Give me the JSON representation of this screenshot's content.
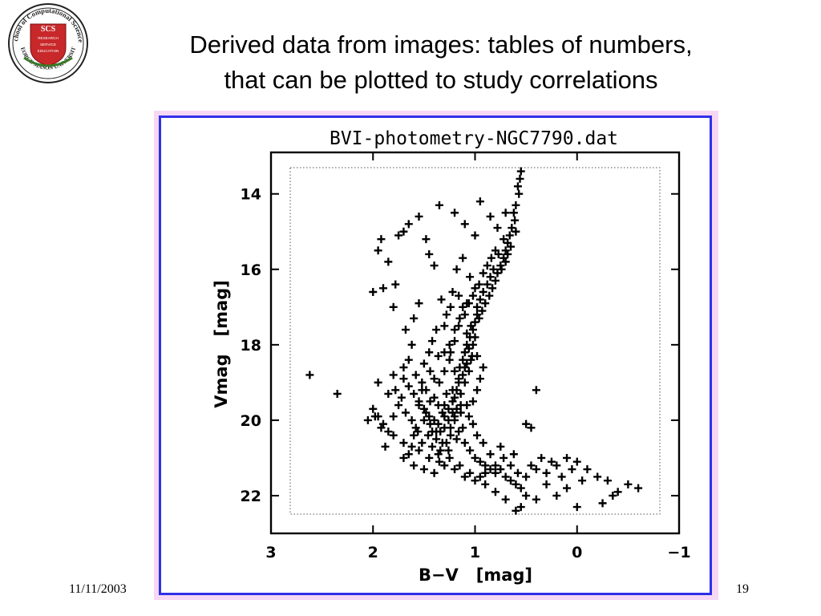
{
  "slide": {
    "title_line1": "Derived data from images: tables of numbers,",
    "title_line2": "that can be plotted to study correlations",
    "date": "11/11/2003",
    "page_number": "19"
  },
  "logo": {
    "ring_text": "School of Computational Sciences",
    "bottom_text": "GEORGE MASON UNIVERSITY",
    "initials": "SCS",
    "lines": [
      "RESEARCH",
      "SERVICE",
      "EDUCATION"
    ]
  },
  "colors": {
    "frame_border": "#2f2fe8",
    "frame_bg": "#f6d8f4",
    "logo_red": "#c8282a"
  },
  "chart_data": {
    "type": "scatter",
    "title": "BVI-photometry-NGC7790.dat",
    "xlabel": "B−V   [mag]",
    "ylabel": "Vmag   [mag]",
    "xlim": [
      3.0,
      -1.0
    ],
    "ylim": [
      23.0,
      12.9
    ],
    "xticks": [
      3,
      2,
      1,
      0,
      -1
    ],
    "xtick_labels": [
      "3",
      "2",
      "1",
      "0",
      "−1"
    ],
    "yticks": [
      14,
      16,
      18,
      20,
      22
    ],
    "ytick_labels": [
      "14",
      "16",
      "18",
      "20",
      "22"
    ],
    "grid": false,
    "marker": "+",
    "points": [
      [
        0.55,
        13.4
      ],
      [
        0.56,
        13.6
      ],
      [
        0.58,
        13.8
      ],
      [
        0.57,
        14.0
      ],
      [
        0.6,
        14.3
      ],
      [
        0.62,
        14.5
      ],
      [
        0.61,
        14.7
      ],
      [
        0.64,
        14.9
      ],
      [
        0.66,
        15.1
      ],
      [
        0.68,
        15.3
      ],
      [
        0.7,
        15.5
      ],
      [
        0.72,
        15.7
      ],
      [
        0.75,
        15.9
      ],
      [
        0.78,
        16.1
      ],
      [
        0.8,
        16.3
      ],
      [
        0.83,
        16.5
      ],
      [
        0.86,
        16.7
      ],
      [
        0.9,
        16.9
      ],
      [
        0.93,
        17.1
      ],
      [
        0.96,
        17.3
      ],
      [
        0.6,
        15.0
      ],
      [
        0.65,
        15.4
      ],
      [
        0.7,
        15.8
      ],
      [
        0.74,
        16.0
      ],
      [
        0.68,
        15.6
      ],
      [
        0.72,
        15.2
      ],
      [
        0.77,
        15.6
      ],
      [
        0.82,
        16.0
      ],
      [
        0.85,
        16.2
      ],
      [
        0.88,
        16.4
      ],
      [
        0.92,
        16.6
      ],
      [
        0.95,
        16.8
      ],
      [
        0.98,
        17.0
      ],
      [
        1.0,
        17.4
      ],
      [
        1.02,
        17.6
      ],
      [
        1.05,
        17.8
      ],
      [
        1.08,
        18.0
      ],
      [
        1.1,
        18.2
      ],
      [
        1.12,
        18.4
      ],
      [
        1.15,
        18.6
      ],
      [
        0.98,
        17.2
      ],
      [
        1.04,
        17.5
      ],
      [
        1.0,
        17.8
      ],
      [
        1.06,
        18.1
      ],
      [
        1.03,
        18.3
      ],
      [
        1.08,
        18.5
      ],
      [
        1.12,
        18.8
      ],
      [
        1.16,
        19.0
      ],
      [
        1.18,
        19.2
      ],
      [
        1.2,
        19.4
      ],
      [
        1.14,
        19.6
      ],
      [
        1.22,
        19.8
      ],
      [
        1.26,
        20.0
      ],
      [
        1.3,
        20.2
      ],
      [
        1.24,
        20.4
      ],
      [
        1.28,
        20.6
      ],
      [
        1.34,
        20.8
      ],
      [
        1.38,
        20.5
      ],
      [
        1.42,
        20.3
      ],
      [
        1.36,
        20.1
      ],
      [
        1.45,
        19.9
      ],
      [
        1.5,
        19.7
      ],
      [
        1.55,
        19.5
      ],
      [
        1.6,
        19.3
      ],
      [
        1.65,
        19.1
      ],
      [
        1.7,
        18.9
      ],
      [
        1.4,
        19.4
      ],
      [
        1.48,
        19.2
      ],
      [
        1.52,
        19.0
      ],
      [
        1.58,
        18.8
      ],
      [
        1.3,
        19.6
      ],
      [
        1.2,
        19.9
      ],
      [
        1.16,
        20.3
      ],
      [
        1.1,
        20.6
      ],
      [
        1.05,
        20.8
      ],
      [
        1.0,
        21.0
      ],
      [
        0.95,
        21.1
      ],
      [
        0.9,
        21.2
      ],
      [
        0.85,
        21.3
      ],
      [
        0.8,
        21.4
      ],
      [
        0.75,
        21.3
      ],
      [
        0.7,
        21.5
      ],
      [
        0.65,
        21.6
      ],
      [
        0.6,
        21.7
      ],
      [
        0.55,
        21.8
      ],
      [
        0.5,
        21.5
      ],
      [
        0.45,
        21.2
      ],
      [
        0.4,
        21.3
      ],
      [
        0.35,
        21.0
      ],
      [
        0.3,
        21.4
      ],
      [
        0.25,
        21.1
      ],
      [
        0.2,
        21.2
      ],
      [
        0.15,
        21.5
      ],
      [
        0.1,
        21.0
      ],
      [
        0.05,
        21.3
      ],
      [
        0.0,
        21.1
      ],
      [
        -0.05,
        21.6
      ],
      [
        -0.1,
        21.3
      ],
      [
        -0.2,
        21.5
      ],
      [
        -0.3,
        21.6
      ],
      [
        -0.4,
        21.9
      ],
      [
        -0.5,
        21.7
      ],
      [
        -0.6,
        21.8
      ],
      [
        -0.35,
        22.0
      ],
      [
        -0.25,
        22.2
      ],
      [
        0.0,
        22.3
      ],
      [
        0.1,
        21.8
      ],
      [
        0.2,
        22.0
      ],
      [
        0.3,
        21.7
      ],
      [
        0.4,
        22.1
      ],
      [
        0.5,
        22.0
      ],
      [
        0.55,
        22.3
      ],
      [
        0.6,
        22.4
      ],
      [
        0.7,
        22.1
      ],
      [
        0.8,
        21.9
      ],
      [
        0.9,
        21.7
      ],
      [
        0.95,
        21.5
      ],
      [
        1.05,
        21.4
      ],
      [
        1.15,
        21.2
      ],
      [
        1.25,
        21.0
      ],
      [
        1.35,
        21.1
      ],
      [
        1.45,
        21.0
      ],
      [
        1.55,
        20.8
      ],
      [
        1.65,
        20.9
      ],
      [
        1.7,
        20.6
      ],
      [
        1.8,
        20.4
      ],
      [
        1.88,
        20.7
      ],
      [
        1.92,
        20.2
      ],
      [
        1.98,
        19.9
      ],
      [
        2.0,
        19.7
      ],
      [
        1.9,
        20.1
      ],
      [
        1.8,
        19.9
      ],
      [
        1.75,
        19.6
      ],
      [
        1.85,
        19.3
      ],
      [
        1.95,
        19.0
      ],
      [
        1.8,
        18.8
      ],
      [
        1.7,
        18.6
      ],
      [
        1.65,
        18.4
      ],
      [
        1.62,
        18.0
      ],
      [
        1.68,
        17.6
      ],
      [
        1.6,
        17.3
      ],
      [
        1.55,
        16.9
      ],
      [
        1.8,
        17.0
      ],
      [
        1.9,
        16.5
      ],
      [
        2.0,
        16.6
      ],
      [
        1.78,
        16.4
      ],
      [
        1.85,
        15.8
      ],
      [
        1.95,
        15.5
      ],
      [
        1.92,
        15.2
      ],
      [
        1.75,
        15.1
      ],
      [
        1.7,
        15.0
      ],
      [
        1.65,
        14.8
      ],
      [
        1.55,
        14.6
      ],
      [
        1.48,
        15.2
      ],
      [
        1.45,
        15.6
      ],
      [
        1.4,
        15.9
      ],
      [
        1.35,
        14.3
      ],
      [
        1.2,
        14.5
      ],
      [
        1.1,
        14.8
      ],
      [
        1.0,
        15.1
      ],
      [
        0.95,
        14.2
      ],
      [
        0.85,
        14.6
      ],
      [
        0.78,
        14.9
      ],
      [
        0.7,
        14.5
      ],
      [
        2.62,
        18.8
      ],
      [
        2.35,
        19.3
      ],
      [
        1.95,
        19.9
      ],
      [
        1.85,
        20.3
      ],
      [
        2.05,
        20.0
      ],
      [
        0.4,
        19.2
      ],
      [
        0.5,
        20.1
      ],
      [
        0.45,
        20.2
      ],
      [
        1.38,
        17.6
      ],
      [
        1.42,
        17.9
      ],
      [
        1.3,
        18.2
      ],
      [
        1.25,
        18.0
      ],
      [
        1.28,
        17.2
      ],
      [
        1.33,
        16.8
      ],
      [
        1.22,
        16.6
      ],
      [
        1.18,
        16.0
      ],
      [
        1.12,
        15.7
      ],
      [
        1.05,
        16.2
      ],
      [
        1.0,
        16.5
      ],
      [
        1.08,
        16.9
      ],
      [
        1.15,
        17.3
      ],
      [
        1.2,
        17.6
      ],
      [
        1.25,
        18.4
      ],
      [
        1.3,
        18.7
      ],
      [
        1.35,
        19.0
      ],
      [
        1.28,
        19.3
      ],
      [
        1.22,
        19.5
      ],
      [
        1.32,
        19.8
      ],
      [
        1.4,
        20.0
      ],
      [
        1.46,
        20.4
      ],
      [
        1.52,
        20.6
      ],
      [
        1.58,
        20.2
      ],
      [
        1.62,
        20.0
      ],
      [
        1.68,
        19.8
      ],
      [
        1.72,
        19.4
      ],
      [
        1.78,
        19.2
      ],
      [
        1.5,
        18.5
      ],
      [
        1.45,
        18.2
      ],
      [
        1.4,
        18.9
      ],
      [
        1.55,
        19.6
      ],
      [
        1.6,
        20.4
      ],
      [
        1.42,
        20.7
      ],
      [
        1.36,
        20.9
      ],
      [
        1.26,
        20.8
      ],
      [
        1.18,
        20.5
      ],
      [
        1.12,
        20.2
      ],
      [
        1.06,
        19.9
      ],
      [
        1.02,
        19.5
      ],
      [
        0.98,
        19.2
      ],
      [
        0.95,
        18.9
      ],
      [
        0.92,
        18.6
      ],
      [
        0.98,
        18.3
      ],
      [
        1.02,
        18.0
      ],
      [
        1.08,
        17.7
      ],
      [
        1.12,
        17.0
      ],
      [
        1.16,
        16.7
      ],
      [
        1.24,
        17.0
      ],
      [
        1.3,
        17.5
      ],
      [
        1.36,
        18.3
      ],
      [
        1.44,
        18.7
      ],
      [
        1.52,
        19.2
      ],
      [
        1.48,
        19.8
      ],
      [
        1.44,
        20.1
      ],
      [
        1.38,
        20.3
      ],
      [
        1.32,
        20.6
      ],
      [
        1.24,
        20.2
      ],
      [
        1.18,
        19.7
      ],
      [
        1.14,
        19.3
      ],
      [
        1.1,
        19.0
      ],
      [
        1.06,
        18.7
      ],
      [
        1.04,
        18.4
      ],
      [
        1.1,
        18.6
      ],
      [
        1.16,
        18.9
      ],
      [
        1.22,
        19.2
      ],
      [
        1.26,
        19.7
      ],
      [
        1.34,
        20.3
      ],
      [
        1.2,
        20.0
      ],
      [
        1.3,
        19.9
      ],
      [
        1.36,
        19.6
      ],
      [
        1.44,
        19.5
      ],
      [
        1.5,
        20.0
      ],
      [
        1.56,
        20.3
      ],
      [
        1.62,
        20.7
      ],
      [
        1.7,
        21.0
      ],
      [
        1.6,
        21.2
      ],
      [
        1.5,
        21.3
      ],
      [
        1.4,
        21.4
      ],
      [
        1.3,
        21.2
      ],
      [
        1.2,
        21.3
      ],
      [
        1.1,
        21.5
      ],
      [
        1.0,
        21.6
      ],
      [
        0.9,
        21.4
      ],
      [
        0.8,
        21.2
      ],
      [
        0.72,
        21.0
      ],
      [
        0.65,
        21.2
      ],
      [
        0.58,
        21.4
      ],
      [
        0.62,
        20.9
      ],
      [
        0.75,
        20.7
      ],
      [
        0.85,
        20.9
      ],
      [
        0.92,
        20.6
      ],
      [
        0.98,
        20.4
      ],
      [
        1.02,
        20.1
      ],
      [
        1.08,
        19.6
      ],
      [
        1.14,
        19.8
      ],
      [
        1.2,
        18.7
      ],
      [
        1.24,
        18.2
      ],
      [
        1.2,
        17.9
      ],
      [
        1.16,
        17.5
      ],
      [
        1.1,
        17.2
      ],
      [
        1.06,
        16.9
      ],
      [
        1.02,
        16.7
      ],
      [
        0.96,
        16.4
      ],
      [
        0.92,
        16.1
      ],
      [
        0.88,
        15.9
      ],
      [
        0.84,
        15.7
      ],
      [
        0.8,
        15.5
      ]
    ]
  }
}
